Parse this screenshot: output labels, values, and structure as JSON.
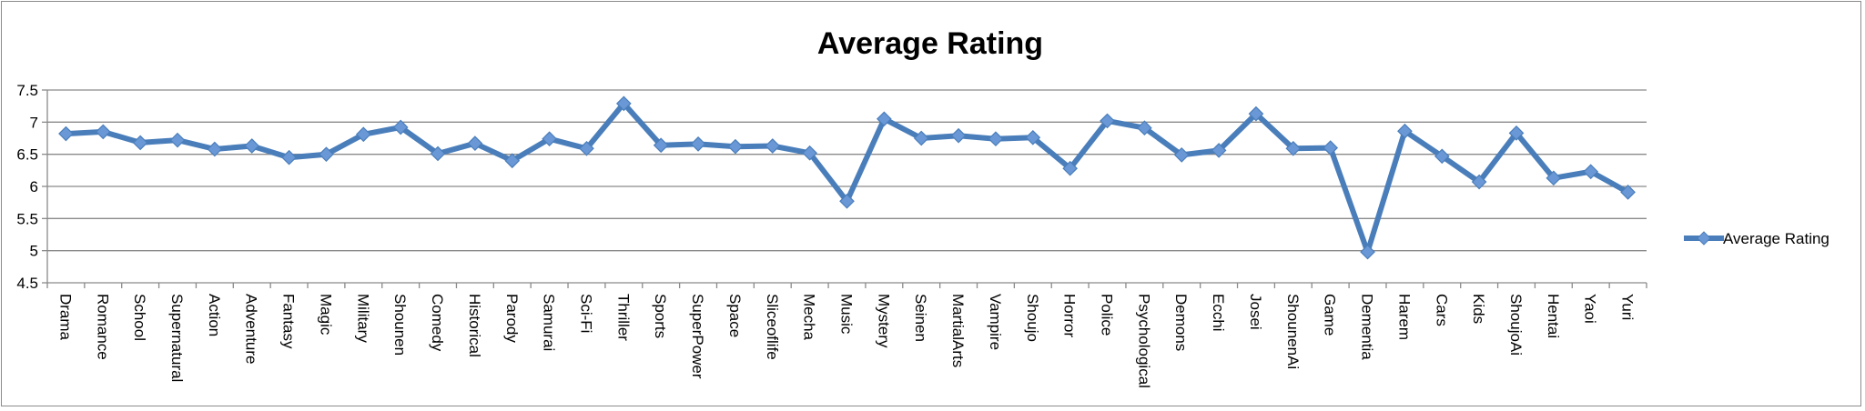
{
  "chart_data": {
    "type": "line",
    "title": "Average Rating",
    "xlabel": "",
    "ylabel": "",
    "ylim": [
      4.5,
      7.5
    ],
    "yticks": [
      "4.5",
      "5",
      "5.5",
      "6",
      "6.5",
      "7",
      "7.5"
    ],
    "yticks_values": [
      4.5,
      5,
      5.5,
      6,
      6.5,
      7,
      7.5
    ],
    "grid": true,
    "legend_position": "right",
    "categories": [
      "Drama",
      "Romance",
      "School",
      "Supernatural",
      "Action",
      "Adventure",
      "Fantasy",
      "Magic",
      "Military",
      "Shounen",
      "Comedy",
      "Historical",
      "Parody",
      "Samurai",
      "Sci-Fi",
      "Thriller",
      "Sports",
      "SuperPower",
      "Space",
      "Sliceoflife",
      "Mecha",
      "Music",
      "Mystery",
      "Seinen",
      "MartialArts",
      "Vampire",
      "Shoujo",
      "Horror",
      "Police",
      "Psychological",
      "Demons",
      "Ecchi",
      "Josei",
      "ShounenAi",
      "Game",
      "Dementia",
      "Harem",
      "Cars",
      "Kids",
      "ShoujoAi",
      "Hentai",
      "Yaoi",
      "Yuri"
    ],
    "series": [
      {
        "name": "Average Rating",
        "color": "#4a7ebb",
        "marker_color": "#6a98d6",
        "values": [
          6.82,
          6.85,
          6.68,
          6.72,
          6.58,
          6.63,
          6.45,
          6.5,
          6.81,
          6.92,
          6.51,
          6.67,
          6.4,
          6.74,
          6.59,
          7.29,
          6.64,
          6.66,
          6.62,
          6.63,
          6.52,
          5.77,
          7.05,
          6.75,
          6.79,
          6.74,
          6.76,
          6.28,
          7.02,
          6.91,
          6.49,
          6.56,
          7.13,
          6.59,
          6.6,
          4.98,
          6.86,
          6.47,
          6.07,
          6.83,
          6.13,
          6.23,
          5.91
        ]
      }
    ]
  }
}
